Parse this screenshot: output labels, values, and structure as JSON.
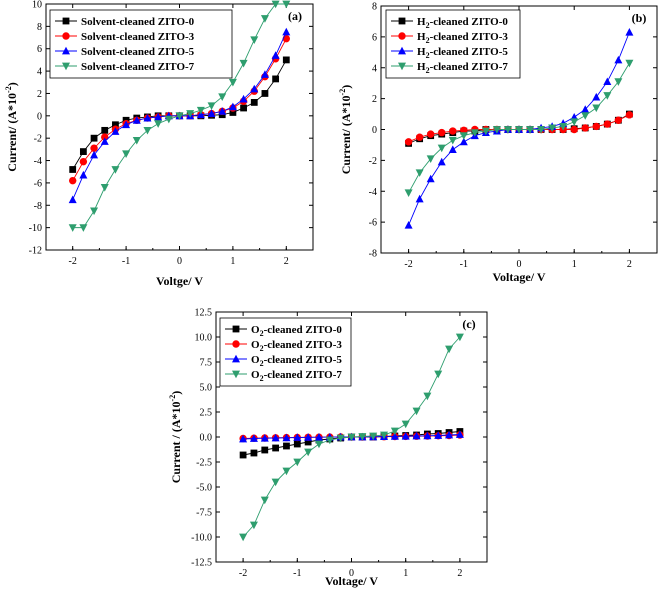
{
  "chart_data": [
    {
      "type": "line",
      "panel": "(a)",
      "xlabel": "Voltge/ V",
      "ylabel_main": "Current/ (A*10",
      "ylabel_sup": "-2",
      "ylabel_end": ")",
      "xlim": [
        -2.5,
        2.5
      ],
      "ylim": [
        -12,
        10
      ],
      "xticks": [
        -2,
        -1,
        0,
        1,
        2
      ],
      "yticks": [
        -12,
        -10,
        -8,
        -6,
        -4,
        -2,
        0,
        2,
        4,
        6,
        8,
        10
      ],
      "legend_position": "top-left",
      "series": [
        {
          "prefix": "Solvent-cleaned ZITO-0",
          "sub": "",
          "suffix": "",
          "marker": "square",
          "color": "#000000",
          "x": [
            -2,
            -1.8,
            -1.6,
            -1.4,
            -1.2,
            -1,
            -0.8,
            -0.6,
            -0.4,
            -0.2,
            0,
            0.2,
            0.4,
            0.6,
            0.8,
            1,
            1.2,
            1.4,
            1.6,
            1.8,
            2
          ],
          "y": [
            -4.8,
            -3.2,
            -2.0,
            -1.3,
            -0.8,
            -0.4,
            -0.2,
            -0.1,
            0,
            0,
            0,
            0,
            0,
            0.05,
            0.1,
            0.3,
            0.7,
            1.2,
            2.0,
            3.3,
            5.0
          ]
        },
        {
          "prefix": "Solvent-cleaned ZITO-3",
          "sub": "",
          "suffix": "",
          "marker": "circle",
          "color": "#ff0000",
          "x": [
            -2,
            -1.8,
            -1.6,
            -1.4,
            -1.2,
            -1,
            -0.8,
            -0.6,
            -0.4,
            -0.2,
            0,
            0.2,
            0.4,
            0.6,
            0.8,
            1,
            1.2,
            1.4,
            1.6,
            1.8,
            2
          ],
          "y": [
            -5.8,
            -4.1,
            -2.9,
            -1.9,
            -1.2,
            -0.7,
            -0.4,
            -0.2,
            -0.1,
            0,
            0,
            0,
            0.1,
            0.2,
            0.4,
            0.7,
            1.3,
            2.2,
            3.5,
            5.1,
            6.9
          ]
        },
        {
          "prefix": "Solvent-cleaned ZITO-5",
          "sub": "",
          "suffix": "",
          "marker": "triangle-up",
          "color": "#0000ff",
          "x": [
            -2,
            -1.8,
            -1.6,
            -1.4,
            -1.2,
            -1,
            -0.8,
            -0.6,
            -0.4,
            -0.2,
            0,
            0.2,
            0.4,
            0.6,
            0.8,
            1,
            1.2,
            1.4,
            1.6,
            1.8,
            2
          ],
          "y": [
            -7.5,
            -5.3,
            -3.5,
            -2.3,
            -1.4,
            -0.8,
            -0.4,
            -0.2,
            -0.1,
            0,
            0,
            0,
            0.1,
            0.2,
            0.4,
            0.8,
            1.5,
            2.4,
            3.7,
            5.4,
            7.5
          ]
        },
        {
          "prefix": "Solvent-cleaned ZITO-7",
          "sub": "",
          "suffix": "",
          "marker": "triangle-down",
          "color": "#2e9e6e",
          "x": [
            -2,
            -1.8,
            -1.6,
            -1.4,
            -1.2,
            -1,
            -0.8,
            -0.6,
            -0.4,
            -0.2,
            0,
            0.2,
            0.4,
            0.6,
            0.8,
            1,
            1.2,
            1.4,
            1.6,
            1.8,
            2
          ],
          "y": [
            -10.0,
            -10.0,
            -8.5,
            -6.4,
            -4.8,
            -3.4,
            -2.2,
            -1.3,
            -0.7,
            -0.3,
            0,
            0.2,
            0.5,
            0.9,
            1.7,
            3.0,
            4.7,
            6.8,
            8.7,
            10.0,
            10.0
          ]
        }
      ]
    },
    {
      "type": "line",
      "panel": "(b)",
      "xlabel": "Voltage/ V",
      "ylabel_main": "Current/ (A*10",
      "ylabel_sup": "-2",
      "ylabel_end": ")",
      "xlim": [
        -2.5,
        2.5
      ],
      "ylim": [
        -8,
        8
      ],
      "xticks": [
        -2,
        -1,
        0,
        1,
        2
      ],
      "yticks": [
        -8,
        -6,
        -4,
        -2,
        0,
        2,
        4,
        6,
        8
      ],
      "legend_position": "top-left",
      "series": [
        {
          "prefix": "H",
          "sub": "2",
          "suffix": "-cleaned ZITO-0",
          "marker": "square",
          "color": "#000000",
          "x": [
            -2,
            -1.8,
            -1.6,
            -1.4,
            -1.2,
            -1,
            -0.8,
            -0.6,
            -0.4,
            -0.2,
            0,
            0.2,
            0.4,
            0.6,
            0.8,
            1,
            1.2,
            1.4,
            1.6,
            1.8,
            2
          ],
          "y": [
            -0.9,
            -0.6,
            -0.4,
            -0.3,
            -0.2,
            -0.1,
            -0.1,
            0,
            0,
            0,
            0,
            0,
            0,
            0,
            0,
            0.05,
            0.1,
            0.2,
            0.35,
            0.6,
            1.0
          ]
        },
        {
          "prefix": "H",
          "sub": "2",
          "suffix": "-cleaned ZITO-3",
          "marker": "circle",
          "color": "#ff0000",
          "x": [
            -2,
            -1.8,
            -1.6,
            -1.4,
            -1.2,
            -1,
            -0.8,
            -0.6,
            -0.4,
            -0.2,
            0,
            0.2,
            0.4,
            0.6,
            0.8,
            1,
            1.2,
            1.4,
            1.6,
            1.8,
            2
          ],
          "y": [
            -0.8,
            -0.5,
            -0.3,
            -0.2,
            -0.1,
            -0.05,
            0,
            0,
            0,
            0,
            0,
            0,
            0,
            0,
            0,
            0,
            0.1,
            0.2,
            0.35,
            0.6,
            0.95
          ]
        },
        {
          "prefix": "H",
          "sub": "2",
          "suffix": "-cleaned ZITO-5",
          "marker": "triangle-up",
          "color": "#0000ff",
          "x": [
            -2,
            -1.8,
            -1.6,
            -1.4,
            -1.2,
            -1,
            -0.8,
            -0.6,
            -0.4,
            -0.2,
            0,
            0.2,
            0.4,
            0.6,
            0.8,
            1,
            1.2,
            1.4,
            1.6,
            1.8,
            2
          ],
          "y": [
            -6.2,
            -4.5,
            -3.2,
            -2.1,
            -1.3,
            -0.8,
            -0.4,
            -0.2,
            -0.1,
            0,
            0,
            0,
            0.1,
            0.2,
            0.4,
            0.8,
            1.3,
            2.1,
            3.1,
            4.5,
            6.3
          ]
        },
        {
          "prefix": "H",
          "sub": "2",
          "suffix": "-cleaned ZITO-7",
          "marker": "triangle-down",
          "color": "#2e9e6e",
          "x": [
            -2,
            -1.8,
            -1.6,
            -1.4,
            -1.2,
            -1,
            -0.8,
            -0.6,
            -0.4,
            -0.2,
            0,
            0.2,
            0.4,
            0.6,
            0.8,
            1,
            1.2,
            1.4,
            1.6,
            1.8,
            2
          ],
          "y": [
            -4.1,
            -2.8,
            -1.9,
            -1.2,
            -0.7,
            -0.4,
            -0.2,
            -0.1,
            0,
            0,
            0,
            0,
            0,
            0.1,
            0.2,
            0.5,
            0.9,
            1.4,
            2.2,
            3.1,
            4.3
          ]
        }
      ]
    },
    {
      "type": "line",
      "panel": "(c)",
      "xlabel": "Voltage/ V",
      "ylabel_main": "Current / (A*10",
      "ylabel_sup": "-2",
      "ylabel_end": ")",
      "xlim": [
        -2.5,
        2.5
      ],
      "ylim": [
        -12.5,
        12.5
      ],
      "xticks": [
        -2,
        -1,
        0,
        1,
        2
      ],
      "yticks": [
        -12.5,
        -10.0,
        -7.5,
        -5.0,
        -2.5,
        0.0,
        2.5,
        5.0,
        7.5,
        10.0,
        12.5
      ],
      "yticks_text": [
        "-12.5",
        "-10.0",
        "-7.5",
        "-5.0",
        "-2.5",
        "0.0",
        "2.5",
        "5.0",
        "7.5",
        "10.0",
        "12.5"
      ],
      "legend_position": "top-left",
      "series": [
        {
          "prefix": "O",
          "sub": "2",
          "suffix": "-cleaned ZITO-0",
          "marker": "square",
          "color": "#000000",
          "x": [
            -2,
            -1.8,
            -1.6,
            -1.4,
            -1.2,
            -1,
            -0.8,
            -0.6,
            -0.4,
            -0.2,
            0,
            0.2,
            0.4,
            0.6,
            0.8,
            1,
            1.2,
            1.4,
            1.6,
            1.8,
            2
          ],
          "y": [
            -1.8,
            -1.6,
            -1.3,
            -1.1,
            -0.9,
            -0.7,
            -0.5,
            -0.3,
            -0.2,
            -0.1,
            0,
            0,
            0,
            0.05,
            0.1,
            0.15,
            0.2,
            0.3,
            0.35,
            0.45,
            0.55
          ]
        },
        {
          "prefix": "O",
          "sub": "2",
          "suffix": "-cleaned ZITO-3",
          "marker": "circle",
          "color": "#ff0000",
          "x": [
            -2,
            -1.8,
            -1.6,
            -1.4,
            -1.2,
            -1,
            -0.8,
            -0.6,
            -0.4,
            -0.2,
            0,
            0.2,
            0.4,
            0.6,
            0.8,
            1,
            1.2,
            1.4,
            1.6,
            1.8,
            2
          ],
          "y": [
            -0.15,
            -0.12,
            -0.1,
            -0.08,
            -0.06,
            -0.05,
            -0.03,
            -0.02,
            -0.01,
            0,
            0,
            0,
            0.02,
            0.03,
            0.05,
            0.06,
            0.08,
            0.1,
            0.12,
            0.15,
            0.2
          ]
        },
        {
          "prefix": "O",
          "sub": "2",
          "suffix": "-cleaned ZITO-5",
          "marker": "triangle-up",
          "color": "#0000ff",
          "x": [
            -2,
            -1.8,
            -1.6,
            -1.4,
            -1.2,
            -1,
            -0.8,
            -0.6,
            -0.4,
            -0.2,
            0,
            0.2,
            0.4,
            0.6,
            0.8,
            1,
            1.2,
            1.4,
            1.6,
            1.8,
            2
          ],
          "y": [
            -0.2,
            -0.15,
            -0.12,
            -0.1,
            -0.08,
            -0.05,
            -0.03,
            -0.02,
            -0.01,
            0,
            0,
            0,
            0.02,
            0.04,
            0.06,
            0.08,
            0.1,
            0.12,
            0.15,
            0.2,
            0.25
          ]
        },
        {
          "prefix": "O",
          "sub": "2",
          "suffix": "-cleaned ZITO-7",
          "marker": "triangle-down",
          "color": "#2e9e6e",
          "x": [
            -2,
            -1.8,
            -1.6,
            -1.4,
            -1.2,
            -1,
            -0.8,
            -0.6,
            -0.4,
            -0.2,
            0,
            0.2,
            0.4,
            0.6,
            0.8,
            1,
            1.2,
            1.4,
            1.6,
            1.8,
            2
          ],
          "y": [
            -10.0,
            -8.8,
            -6.3,
            -4.5,
            -3.4,
            -2.5,
            -1.5,
            -0.7,
            -0.3,
            -0.1,
            0,
            0.05,
            0.1,
            0.2,
            0.6,
            1.3,
            2.6,
            4.1,
            6.3,
            8.8,
            10.0
          ]
        }
      ]
    }
  ]
}
